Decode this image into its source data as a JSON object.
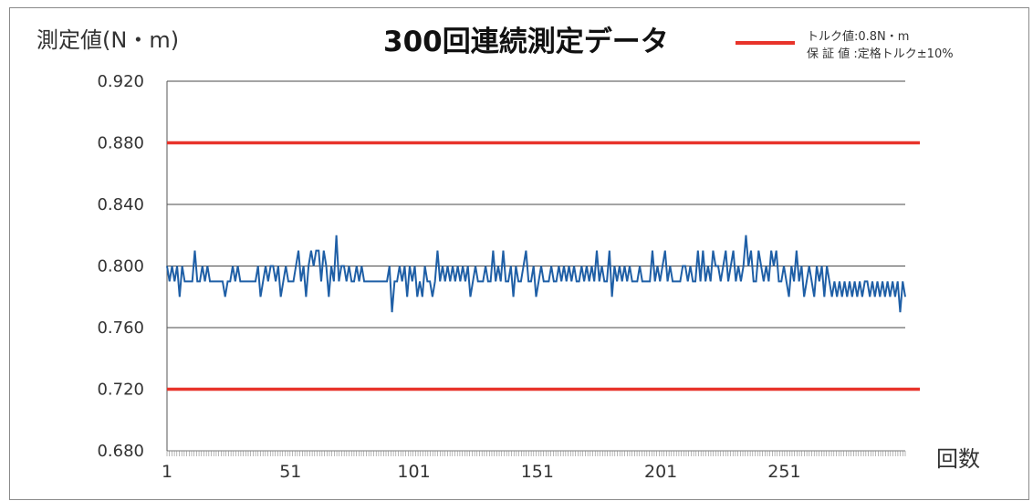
{
  "chart_data": {
    "type": "line",
    "title": "300回連続測定データ",
    "ylabel": "測定値(N・m)",
    "xlabel": "回数",
    "ylim": [
      0.68,
      0.92
    ],
    "xlim": [
      1,
      300
    ],
    "yticks": [
      "0.920",
      "0.880",
      "0.840",
      "0.800",
      "0.760",
      "0.720",
      "0.680"
    ],
    "xticks": [
      "1",
      "51",
      "101",
      "151",
      "201",
      "251"
    ],
    "grid": true,
    "legend": {
      "position": "top-right",
      "line1": "トルク値:0.8N・m",
      "line2": "保 証 値 :定格トルク±10%"
    },
    "limit_lines": [
      {
        "value": 0.88,
        "color": "#e8332a"
      },
      {
        "value": 0.72,
        "color": "#e8332a"
      }
    ],
    "series": [
      {
        "color": "#1f5fa6",
        "values": [
          0.8,
          0.79,
          0.8,
          0.79,
          0.8,
          0.78,
          0.8,
          0.79,
          0.79,
          0.79,
          0.79,
          0.81,
          0.79,
          0.79,
          0.8,
          0.79,
          0.8,
          0.79,
          0.79,
          0.79,
          0.79,
          0.79,
          0.79,
          0.78,
          0.79,
          0.79,
          0.8,
          0.79,
          0.8,
          0.79,
          0.79,
          0.79,
          0.79,
          0.79,
          0.79,
          0.79,
          0.8,
          0.78,
          0.79,
          0.8,
          0.79,
          0.8,
          0.8,
          0.79,
          0.8,
          0.78,
          0.79,
          0.8,
          0.79,
          0.79,
          0.79,
          0.8,
          0.81,
          0.79,
          0.8,
          0.78,
          0.8,
          0.81,
          0.8,
          0.81,
          0.81,
          0.79,
          0.81,
          0.8,
          0.78,
          0.8,
          0.79,
          0.82,
          0.79,
          0.8,
          0.8,
          0.79,
          0.8,
          0.79,
          0.79,
          0.8,
          0.79,
          0.8,
          0.79,
          0.79,
          0.79,
          0.79,
          0.79,
          0.79,
          0.79,
          0.79,
          0.79,
          0.79,
          0.8,
          0.77,
          0.79,
          0.79,
          0.8,
          0.79,
          0.8,
          0.78,
          0.8,
          0.79,
          0.8,
          0.78,
          0.79,
          0.78,
          0.8,
          0.79,
          0.79,
          0.78,
          0.79,
          0.81,
          0.79,
          0.8,
          0.79,
          0.8,
          0.79,
          0.8,
          0.79,
          0.8,
          0.79,
          0.8,
          0.79,
          0.8,
          0.78,
          0.79,
          0.8,
          0.79,
          0.79,
          0.79,
          0.8,
          0.79,
          0.79,
          0.81,
          0.79,
          0.8,
          0.79,
          0.81,
          0.79,
          0.79,
          0.8,
          0.78,
          0.8,
          0.79,
          0.79,
          0.8,
          0.81,
          0.79,
          0.79,
          0.8,
          0.78,
          0.79,
          0.8,
          0.79,
          0.79,
          0.79,
          0.8,
          0.79,
          0.79,
          0.8,
          0.79,
          0.8,
          0.79,
          0.8,
          0.79,
          0.8,
          0.79,
          0.79,
          0.8,
          0.79,
          0.8,
          0.79,
          0.8,
          0.79,
          0.81,
          0.79,
          0.8,
          0.79,
          0.79,
          0.81,
          0.78,
          0.8,
          0.79,
          0.8,
          0.79,
          0.8,
          0.79,
          0.8,
          0.79,
          0.79,
          0.79,
          0.8,
          0.79,
          0.79,
          0.79,
          0.79,
          0.81,
          0.79,
          0.8,
          0.79,
          0.8,
          0.81,
          0.79,
          0.8,
          0.79,
          0.79,
          0.79,
          0.79,
          0.8,
          0.8,
          0.79,
          0.8,
          0.79,
          0.79,
          0.81,
          0.79,
          0.81,
          0.79,
          0.8,
          0.79,
          0.81,
          0.8,
          0.8,
          0.79,
          0.8,
          0.81,
          0.79,
          0.8,
          0.81,
          0.79,
          0.8,
          0.79,
          0.8,
          0.82,
          0.8,
          0.81,
          0.79,
          0.79,
          0.81,
          0.8,
          0.79,
          0.8,
          0.79,
          0.81,
          0.8,
          0.81,
          0.79,
          0.79,
          0.8,
          0.79,
          0.78,
          0.8,
          0.79,
          0.81,
          0.79,
          0.8,
          0.78,
          0.79,
          0.8,
          0.79,
          0.78,
          0.8,
          0.79,
          0.8,
          0.78,
          0.8,
          0.79,
          0.78,
          0.79,
          0.78,
          0.79,
          0.78,
          0.79,
          0.78,
          0.79,
          0.78,
          0.79,
          0.78,
          0.79,
          0.78,
          0.79,
          0.79,
          0.78,
          0.79,
          0.78,
          0.79,
          0.78,
          0.79,
          0.78,
          0.79,
          0.78,
          0.79,
          0.78,
          0.79,
          0.77,
          0.79,
          0.78
        ]
      }
    ]
  }
}
